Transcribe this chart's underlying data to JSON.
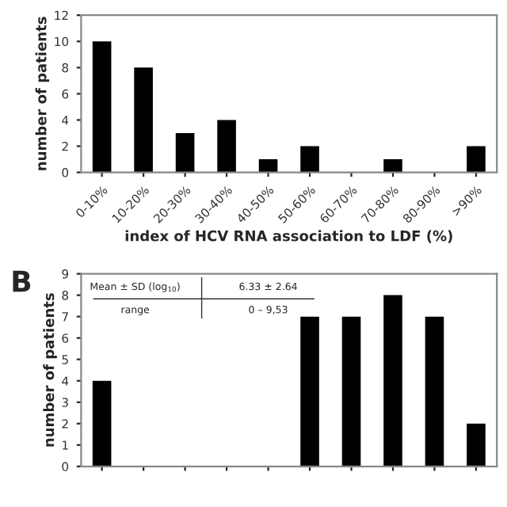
{
  "chart_data": [
    {
      "type": "bar",
      "categories": [
        "0-10%",
        "10-20%",
        "20-30%",
        "30-40%",
        "40-50%",
        "50-60%",
        "60-70%",
        "70-80%",
        "80-90%",
        ">90%"
      ],
      "values": [
        10,
        8,
        3,
        4,
        1,
        2,
        0,
        1,
        0,
        2
      ],
      "color": "#000000",
      "xlabel": "index of HCV RNA association to LDF (%)",
      "ylabel": "number of patients",
      "ylim": [
        0,
        12
      ],
      "yticks": [
        0,
        2,
        4,
        6,
        8,
        10,
        12
      ],
      "grid": false,
      "legend": false
    },
    {
      "type": "bar",
      "title": "B",
      "categories": [
        null,
        null,
        null,
        null,
        null,
        null,
        null,
        null,
        null,
        null
      ],
      "values": [
        4,
        null,
        null,
        null,
        null,
        7,
        7,
        8,
        7,
        2
      ],
      "color": "#000000",
      "ylabel": "number of patients",
      "ylim": [
        0,
        9
      ],
      "yticks": [
        0,
        1,
        2,
        3,
        4,
        5,
        6,
        7,
        8,
        9
      ],
      "grid": false,
      "legend": false,
      "annotations": [
        "Mean ± SD (log$_{10}$)",
        "6.33 ± 2.64",
        "range",
        "0 – 9,53"
      ]
    }
  ]
}
